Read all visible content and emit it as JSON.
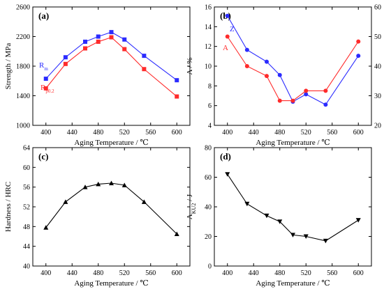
{
  "chart_data": [
    {
      "type": "line",
      "panel": "(a)",
      "xlabel": "Aging Temperature / ℃",
      "ylabel": "Strength / MPa",
      "xlim": [
        380,
        620
      ],
      "ylim": [
        1000,
        2600
      ],
      "xticks": [
        400,
        440,
        480,
        520,
        560,
        600
      ],
      "yticks": [
        1000,
        1400,
        1800,
        2200,
        2600
      ],
      "x": [
        400,
        430,
        460,
        480,
        500,
        520,
        550,
        600
      ],
      "series": [
        {
          "name": "Rm",
          "label_main": "R",
          "label_sub": "m",
          "color": "#2b2bff",
          "marker": "square",
          "values": [
            1630,
            1920,
            2130,
            2200,
            2260,
            2160,
            1940,
            1610
          ]
        },
        {
          "name": "Rp0.2",
          "label_main": "R",
          "label_sub": "p0.2",
          "color": "#ff2b2b",
          "marker": "square",
          "values": [
            1500,
            1830,
            2040,
            2130,
            2190,
            2030,
            1760,
            1390
          ]
        }
      ]
    },
    {
      "type": "line",
      "panel": "(b)",
      "xlabel": "Aging Temperature /  ℃",
      "ylabel": "A / %",
      "y2label": "Z / %",
      "xlim": [
        380,
        620
      ],
      "ylim": [
        4,
        16
      ],
      "y2lim": [
        20,
        60
      ],
      "xticks": [
        400,
        440,
        480,
        520,
        560,
        600
      ],
      "yticks": [
        4,
        6,
        8,
        10,
        12,
        14,
        16
      ],
      "y2ticks": [
        20,
        30,
        40,
        50,
        60
      ],
      "x": [
        400,
        430,
        460,
        480,
        500,
        520,
        550,
        600
      ],
      "series": [
        {
          "name": "Z",
          "axis": "right",
          "color": "#2b2bff",
          "marker": "circle",
          "values": [
            57,
            45.5,
            41.5,
            37,
            28,
            30.5,
            27,
            43.5
          ]
        },
        {
          "name": "A",
          "axis": "left",
          "color": "#ff2b2b",
          "marker": "circle",
          "values": [
            13,
            10,
            9,
            6.5,
            6.5,
            7.5,
            7.5,
            12.5
          ]
        }
      ]
    },
    {
      "type": "line",
      "panel": "(c)",
      "xlabel": "Aging Temperature / ℃",
      "ylabel": "Hardness / HRC",
      "xlim": [
        380,
        620
      ],
      "ylim": [
        40,
        64
      ],
      "xticks": [
        400,
        440,
        480,
        520,
        560,
        600
      ],
      "yticks": [
        40,
        44,
        48,
        52,
        56,
        60,
        64
      ],
      "x": [
        400,
        430,
        460,
        480,
        500,
        520,
        550,
        600
      ],
      "series": [
        {
          "name": "",
          "color": "#000000",
          "marker": "triangle-up",
          "values": [
            47.8,
            53,
            56,
            56.6,
            56.8,
            56.4,
            53,
            46.5
          ]
        }
      ]
    },
    {
      "type": "line",
      "panel": "(d)",
      "xlabel": "Aging Temperature / ℃",
      "ylabel": "A",
      "ylabel_sub": "KU2",
      "ylabel_tail": " / J",
      "xlim": [
        380,
        620
      ],
      "ylim": [
        0,
        80
      ],
      "xticks": [
        400,
        440,
        480,
        520,
        560,
        600
      ],
      "yticks": [
        0,
        20,
        40,
        60,
        80
      ],
      "x": [
        400,
        430,
        460,
        480,
        500,
        520,
        550,
        600
      ],
      "series": [
        {
          "name": "",
          "color": "#000000",
          "marker": "triangle-down",
          "values": [
            62,
            42,
            34,
            30,
            21,
            20,
            17,
            31
          ]
        }
      ]
    }
  ]
}
